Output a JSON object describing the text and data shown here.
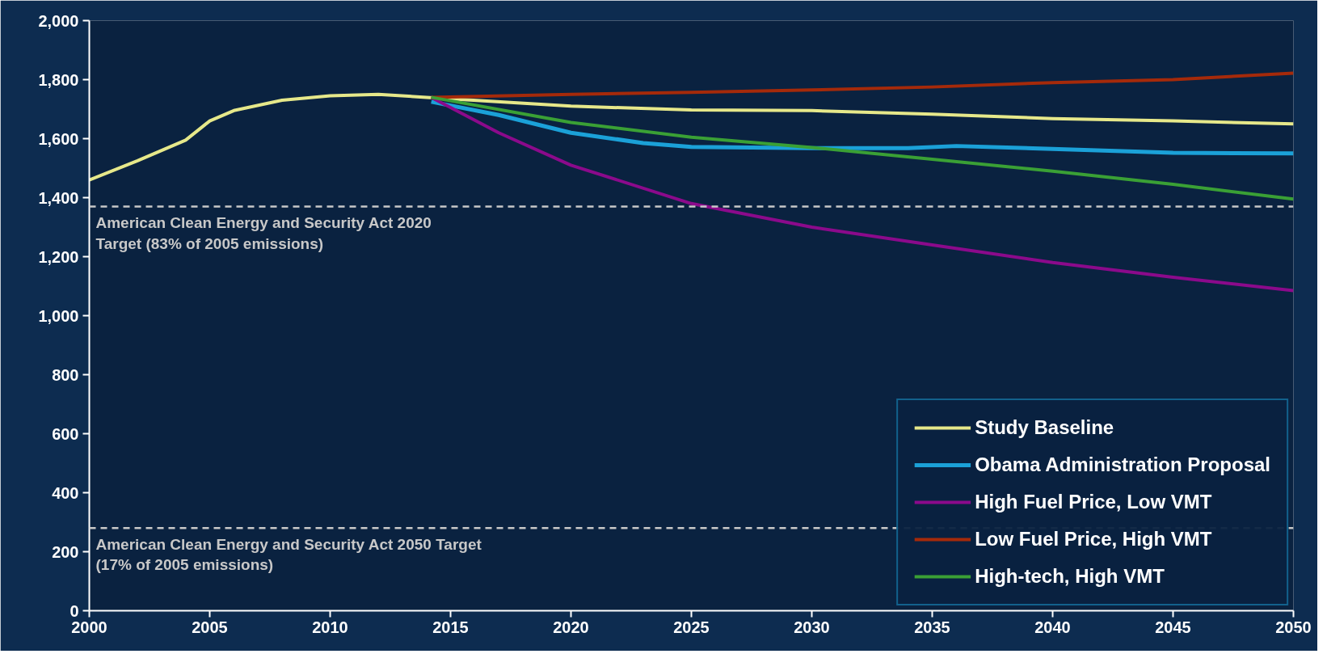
{
  "chart_data": {
    "type": "line",
    "xlim": [
      2000,
      2050
    ],
    "ylim": [
      0,
      2000
    ],
    "xticks": [
      2000,
      2005,
      2010,
      2015,
      2020,
      2025,
      2030,
      2035,
      2040,
      2045,
      2050
    ],
    "yticks": [
      0,
      {
        "value": 200,
        "label": "200"
      },
      {
        "value": 400,
        "label": "400"
      },
      {
        "value": 600,
        "label": "600"
      },
      {
        "value": 800,
        "label": "800"
      },
      {
        "value": 1000,
        "label": "1,000"
      },
      {
        "value": 1200,
        "label": "1,200"
      },
      {
        "value": 1400,
        "label": "1,400"
      },
      {
        "value": 1600,
        "label": "1,600"
      },
      {
        "value": 1800,
        "label": "1,800"
      },
      {
        "value": 2000,
        "label": "2,000"
      }
    ],
    "grid": false,
    "legend": "bottom right",
    "marker": "none",
    "line_style": "solid",
    "series": [
      {
        "name": "Study Baseline",
        "color": "#e6e88a",
        "x": [
          2000,
          2002,
          2004,
          2005,
          2006,
          2008,
          2010,
          2012,
          2014,
          2020,
          2025,
          2030,
          2035,
          2040,
          2045,
          2050
        ],
        "values": [
          1460,
          1525,
          1595,
          1660,
          1695,
          1730,
          1745,
          1750,
          1740,
          1710,
          1697,
          1695,
          1683,
          1668,
          1660,
          1650
        ]
      },
      {
        "name": "Obama Administration Proposal",
        "color": "#1ba1d8",
        "x": [
          2014.2,
          2017,
          2020,
          2023,
          2025,
          2030,
          2034,
          2036,
          2040,
          2045,
          2050
        ],
        "values": [
          1725,
          1680,
          1620,
          1585,
          1572,
          1568,
          1568,
          1575,
          1565,
          1552,
          1550
        ]
      },
      {
        "name": "High Fuel Price, Low VMT",
        "color": "#8b0a8b",
        "x": [
          2014.2,
          2017,
          2020,
          2025,
          2030,
          2035,
          2040,
          2045,
          2050
        ],
        "values": [
          1740,
          1620,
          1510,
          1380,
          1300,
          1240,
          1180,
          1130,
          1085
        ]
      },
      {
        "name": "Low Fuel Price, High VMT",
        "color": "#a52a0a",
        "x": [
          2014.2,
          2020,
          2025,
          2030,
          2035,
          2040,
          2045,
          2050
        ],
        "values": [
          1740,
          1750,
          1757,
          1765,
          1775,
          1790,
          1800,
          1822
        ]
      },
      {
        "name": "High-tech, High VMT",
        "color": "#3aa035",
        "x": [
          2014.2,
          2020,
          2025,
          2030,
          2035,
          2040,
          2045,
          2050
        ],
        "values": [
          1740,
          1655,
          1605,
          1570,
          1530,
          1490,
          1445,
          1395
        ]
      }
    ],
    "ref_lines": [
      {
        "axis": "y",
        "value": 1370,
        "label": "American Clean Energy and Security Act 2020\nTarget (83% of 2005 emissions)",
        "color": "#c8c8c8",
        "line_style": "dashed"
      },
      {
        "axis": "y",
        "value": 280,
        "label": "American Clean Energy and Security Act 2050 Target\n(17% of 2005 emissions)",
        "color": "#c8c8c8",
        "line_style": "dashed"
      }
    ]
  }
}
